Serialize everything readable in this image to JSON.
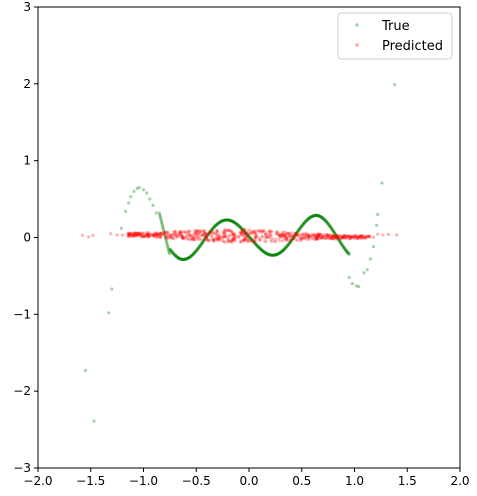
{
  "chart_data": {
    "type": "scatter",
    "title": "",
    "xlabel": "",
    "ylabel": "",
    "xlim": [
      -2.0,
      2.0
    ],
    "ylim": [
      -3,
      3
    ],
    "grid": false,
    "legend_position": "top-right",
    "x_ticks": [
      "−2.0",
      "−1.5",
      "−1.0",
      "−0.5",
      "0.0",
      "0.5",
      "1.0",
      "1.5",
      "2.0"
    ],
    "x_tick_values": [
      -2.0,
      -1.5,
      -1.0,
      -0.5,
      0.0,
      0.5,
      1.0,
      1.5,
      2.0
    ],
    "y_ticks": [
      "−3",
      "−2",
      "−1",
      "0",
      "1",
      "2",
      "3"
    ],
    "y_tick_values": [
      -3,
      -2,
      -1,
      0,
      1,
      2,
      3
    ],
    "series": [
      {
        "name": "True",
        "color": "#008000",
        "opacity": 0.3,
        "description_formula": "sin-like wave with growing amplitude",
        "points": [
          [
            -1.55,
            -1.73
          ],
          [
            -1.47,
            -2.39
          ],
          [
            -1.33,
            -0.98
          ],
          [
            -1.3,
            -0.67
          ],
          [
            -1.21,
            0.12
          ],
          [
            -1.17,
            0.34
          ],
          [
            -1.14,
            0.45
          ],
          [
            -1.12,
            0.53
          ],
          [
            -1.09,
            0.6
          ],
          [
            -1.06,
            0.64
          ],
          [
            -1.04,
            0.65
          ],
          [
            -1.0,
            0.62
          ],
          [
            -0.97,
            0.58
          ],
          [
            -0.94,
            0.5
          ],
          [
            -0.91,
            0.42
          ],
          [
            -0.88,
            0.32
          ],
          [
            1.04,
            -0.64
          ],
          [
            1.02,
            -0.63
          ],
          [
            0.98,
            -0.6
          ],
          [
            0.95,
            -0.52
          ],
          [
            1.09,
            -0.46
          ],
          [
            1.12,
            -0.42
          ],
          [
            1.15,
            -0.28
          ],
          [
            1.18,
            -0.12
          ],
          [
            1.21,
            0.16
          ],
          [
            1.22,
            0.3
          ],
          [
            1.26,
            0.71
          ],
          [
            1.38,
            1.99
          ]
        ]
      },
      {
        "name": "Predicted",
        "color": "#ff0000",
        "opacity": 0.25
      }
    ]
  }
}
